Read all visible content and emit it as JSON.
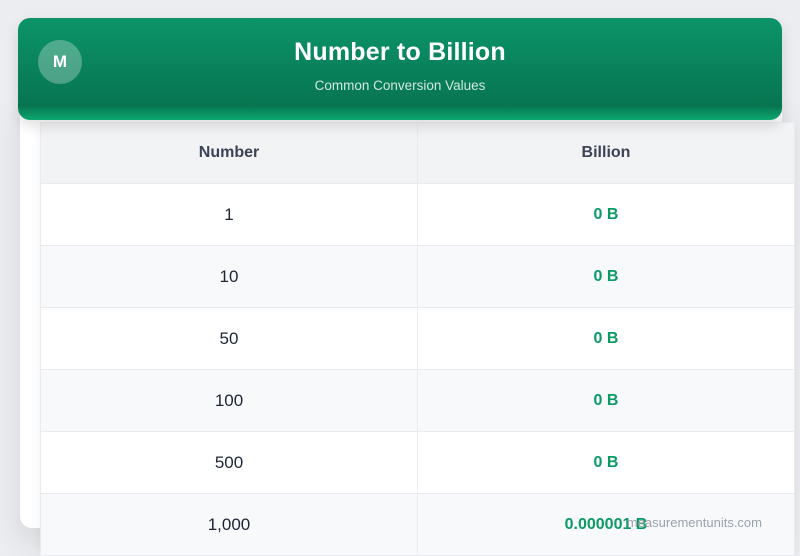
{
  "header": {
    "avatar_letter": "M",
    "title": "Number to Billion",
    "subtitle": "Common Conversion Values"
  },
  "table": {
    "columns": [
      "Number",
      "Billion"
    ],
    "rows": [
      {
        "number": "1",
        "billion": "0 B"
      },
      {
        "number": "10",
        "billion": "0 B"
      },
      {
        "number": "50",
        "billion": "0 B"
      },
      {
        "number": "100",
        "billion": "0 B"
      },
      {
        "number": "500",
        "billion": "0 B"
      },
      {
        "number": "1,000",
        "billion": "0.000001 B"
      }
    ]
  },
  "page": {
    "watermark": "measurementunits.com"
  },
  "colors": {
    "page_bg": "#ecedf0",
    "header_grad_top": "#0c9468",
    "header_grad_bottom": "#077551",
    "header_strip": "#0ca76f",
    "value_green": "#0a9a64",
    "header_text": "#3b4356",
    "cell_text": "#1d2533",
    "row_alt_bg": "#f8f9fb",
    "thead_bg": "#f2f3f5",
    "table_border": "#e9ebee",
    "watermark_color": "#9aa2ac"
  }
}
